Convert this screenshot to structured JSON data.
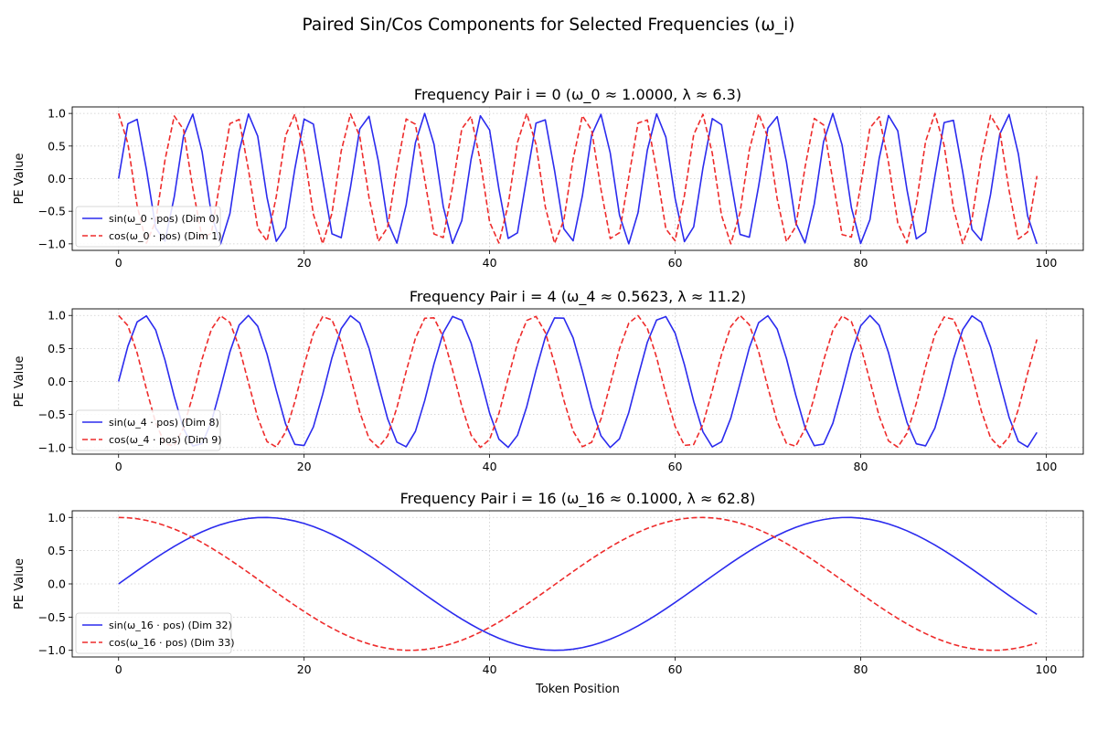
{
  "suptitle": "Paired Sin/Cos Components for Selected Frequencies (ω_i)",
  "chart_data": [
    {
      "type": "line",
      "title": "Frequency Pair i = 0 (ω_0 ≈ 1.0000, λ ≈ 6.3)",
      "omega": 1.0,
      "xlabel": "",
      "ylabel": "PE Value",
      "xlim": [
        -5,
        104
      ],
      "ylim": [
        -1.1,
        1.1
      ],
      "x_ticks": [
        "0",
        "20",
        "40",
        "60",
        "80",
        "100"
      ],
      "y_ticks": [
        "1.0",
        "0.5",
        "0.0",
        "−0.5",
        "−1.0"
      ],
      "x_range": [
        0,
        99
      ],
      "grid": true,
      "legend_position": "lower-left",
      "series": [
        {
          "name": "sin(ω_0 · pos) (Dim 0)",
          "function": "sin",
          "color": "#2b2bee",
          "style": "solid"
        },
        {
          "name": "cos(ω_0 · pos) (Dim 1)",
          "function": "cos",
          "color": "#ee2b2b",
          "style": "dashed"
        }
      ]
    },
    {
      "type": "line",
      "title": "Frequency Pair i = 4 (ω_4 ≈ 0.5623, λ ≈ 11.2)",
      "omega": 0.5623,
      "xlabel": "",
      "ylabel": "PE Value",
      "xlim": [
        -5,
        104
      ],
      "ylim": [
        -1.1,
        1.1
      ],
      "x_ticks": [
        "0",
        "20",
        "40",
        "60",
        "80",
        "100"
      ],
      "y_ticks": [
        "1.0",
        "0.5",
        "0.0",
        "−0.5",
        "−1.0"
      ],
      "x_range": [
        0,
        99
      ],
      "grid": true,
      "legend_position": "lower-left",
      "series": [
        {
          "name": "sin(ω_4 · pos) (Dim 8)",
          "function": "sin",
          "color": "#2b2bee",
          "style": "solid"
        },
        {
          "name": "cos(ω_4 · pos) (Dim 9)",
          "function": "cos",
          "color": "#ee2b2b",
          "style": "dashed"
        }
      ]
    },
    {
      "type": "line",
      "title": "Frequency Pair i = 16 (ω_16 ≈ 0.1000, λ ≈ 62.8)",
      "omega": 0.1,
      "xlabel": "Token Position",
      "ylabel": "PE Value",
      "xlim": [
        -5,
        104
      ],
      "ylim": [
        -1.1,
        1.1
      ],
      "x_ticks": [
        "0",
        "20",
        "40",
        "60",
        "80",
        "100"
      ],
      "y_ticks": [
        "1.0",
        "0.5",
        "0.0",
        "−0.5",
        "−1.0"
      ],
      "x_range": [
        0,
        99
      ],
      "grid": true,
      "legend_position": "lower-left",
      "series": [
        {
          "name": "sin(ω_16 · pos) (Dim 32)",
          "function": "sin",
          "color": "#2b2bee",
          "style": "solid"
        },
        {
          "name": "cos(ω_16 · pos) (Dim 33)",
          "function": "cos",
          "color": "#ee2b2b",
          "style": "dashed"
        }
      ]
    }
  ]
}
